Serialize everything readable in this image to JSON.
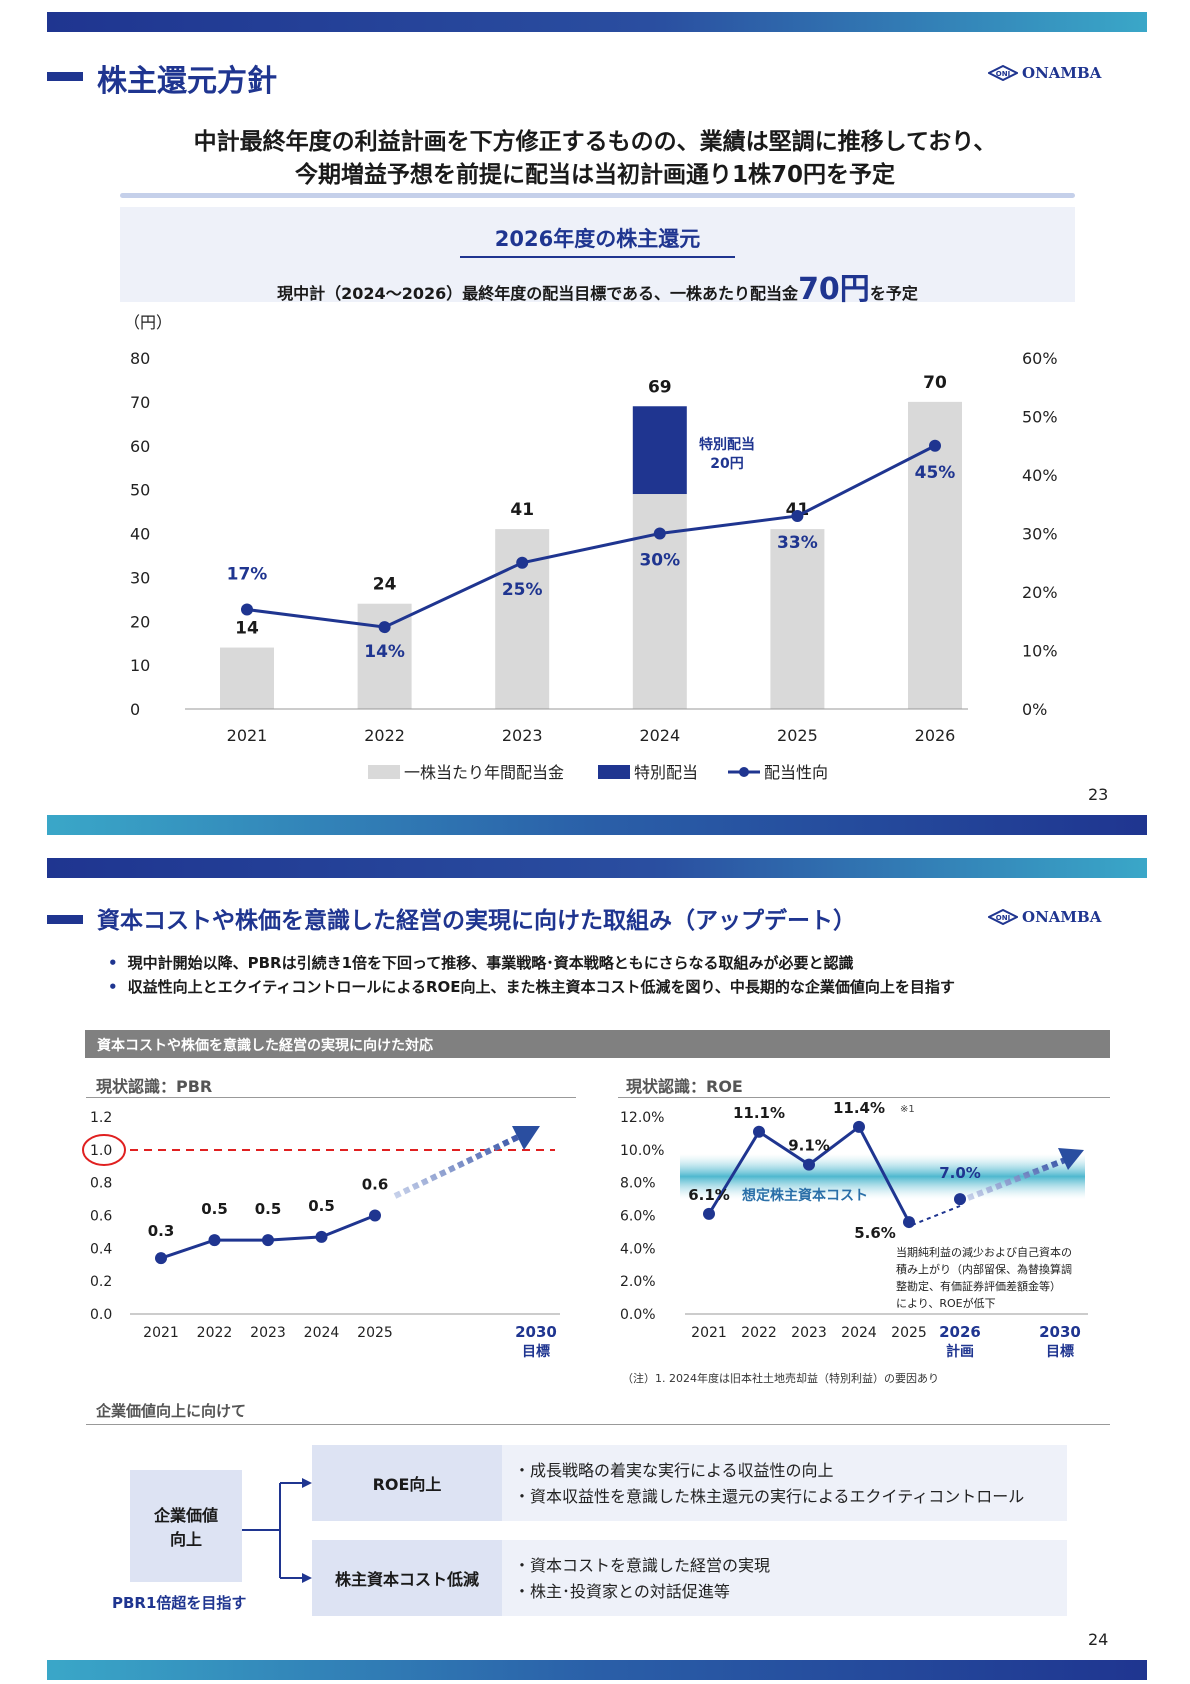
{
  "brand": {
    "logo_text": "ONAMBA",
    "primary": "#1f3590",
    "gray_bar": "#d9d9d9",
    "accent": "#3aa7c8",
    "red": "#e02020"
  },
  "slide23": {
    "title": "株主還元方針",
    "headline_1": "中計最終年度の利益計画を下方修正するものの、業績は堅調に推移しており、",
    "headline_2": "今期増益予想を前提に配当は当初計画通り1株70円を予定",
    "box_title": "2026年度の株主還元",
    "box_text_pre": "現中計（2024～2026）最終年度の配当目標である、一株あたり配当金",
    "box_text_big": "70円",
    "box_text_post": "を予定",
    "page": "23"
  },
  "slide24": {
    "title": "資本コストや株価を意識した経営の実現に向けた取組み（アップデート）",
    "bullets": [
      "現中計開始以降、PBRは引続き1倍を下回って推移、事業戦略･資本戦略ともにさらなる取組みが必要と認識",
      "収益性向上とエクイティコントロールによるROE向上、また株主資本コスト低減を図り、中長期的な企業価値向上を目指す"
    ],
    "section_header": "資本コストや株価を意識した経営の実現に向けた対応",
    "pbr_label": "現状認識：PBR",
    "roe_label": "現状認識：ROE",
    "roe_footnote": "（注）1. 2024年度は旧本社土地売却益（特別利益）の要因あり",
    "roe_note_lines": [
      "当期純利益の減少および自己資本の",
      "積み上がり（内部留保、為替換算調",
      "整勘定、有価証券評価差額金等）",
      "により、ROEが低下"
    ],
    "roe_note_mark": "※1",
    "cost_label": "想定株主資本コスト",
    "value_header": "企業価値向上に向けて",
    "value_box_1": "企業価値",
    "value_box_2": "向上",
    "value_goal": "PBR1倍超を目指す",
    "roe_up": "ROE向上",
    "roe_up_items": [
      "・成長戦略の着実な実行による収益性の向上",
      "・資本収益性を意識した株主還元の実行によるエクイティコントロール"
    ],
    "cost_down": "株主資本コスト低減",
    "cost_down_items": [
      "・資本コストを意識した経営の実現",
      "・株主･投資家との対話促進等"
    ],
    "page": "24"
  },
  "chart_data": [
    {
      "type": "bar",
      "unit": "（円）",
      "categories": [
        "2021",
        "2022",
        "2023",
        "2024",
        "2025",
        "2026"
      ],
      "series": [
        {
          "name": "一株当たり年間配当金",
          "values": [
            14,
            24,
            41,
            49,
            41,
            70
          ],
          "color": "#d9d9d9"
        },
        {
          "name": "特別配当",
          "values": [
            0,
            0,
            0,
            20,
            0,
            0
          ],
          "color": "#1f3590"
        },
        {
          "name": "配当性向",
          "values": [
            17,
            14,
            25,
            30,
            33,
            45
          ],
          "axis": "right",
          "type": "line"
        }
      ],
      "bar_labels": [
        "14",
        "24",
        "41",
        "69",
        "41",
        "70"
      ],
      "payout_labels": [
        "17%",
        "14%",
        "25%",
        "30%",
        "33%",
        "45%"
      ],
      "special_label_1": "特別配当",
      "special_label_2": "20円",
      "ylim": [
        0,
        80
      ],
      "yticks": [
        "0",
        "10",
        "20",
        "30",
        "40",
        "50",
        "60",
        "70",
        "80"
      ],
      "y2lim": [
        0,
        60
      ],
      "y2ticks": [
        "0%",
        "10%",
        "20%",
        "30%",
        "40%",
        "50%",
        "60%"
      ],
      "legend": "bottom"
    },
    {
      "type": "line",
      "categories": [
        "2021",
        "2022",
        "2023",
        "2024",
        "2025"
      ],
      "values": [
        0.34,
        0.45,
        0.45,
        0.47,
        0.6
      ],
      "labels": [
        "0.3",
        "0.5",
        "0.5",
        "0.5",
        "0.6"
      ],
      "target_category": "2030",
      "target_sub": "目標",
      "target_value": 1.0,
      "ylim": [
        0,
        1.2
      ],
      "yticks": [
        "0.0",
        "0.2",
        "0.4",
        "0.6",
        "0.8",
        "1.0",
        "1.2"
      ]
    },
    {
      "type": "line",
      "categories": [
        "2021",
        "2022",
        "2023",
        "2024",
        "2025"
      ],
      "values": [
        6.1,
        11.1,
        9.1,
        11.4,
        5.6
      ],
      "labels": [
        "6.1%",
        "11.1%",
        "9.1%",
        "11.4%",
        "5.6%"
      ],
      "plan_category": "2026",
      "plan_sub": "計画",
      "plan_value": 7.0,
      "plan_label": "7.0%",
      "target_category": "2030",
      "target_sub": "目標",
      "ylim": [
        0,
        12
      ],
      "yticks": [
        "0.0%",
        "2.0%",
        "4.0%",
        "6.0%",
        "8.0%",
        "10.0%",
        "12.0%"
      ]
    }
  ]
}
